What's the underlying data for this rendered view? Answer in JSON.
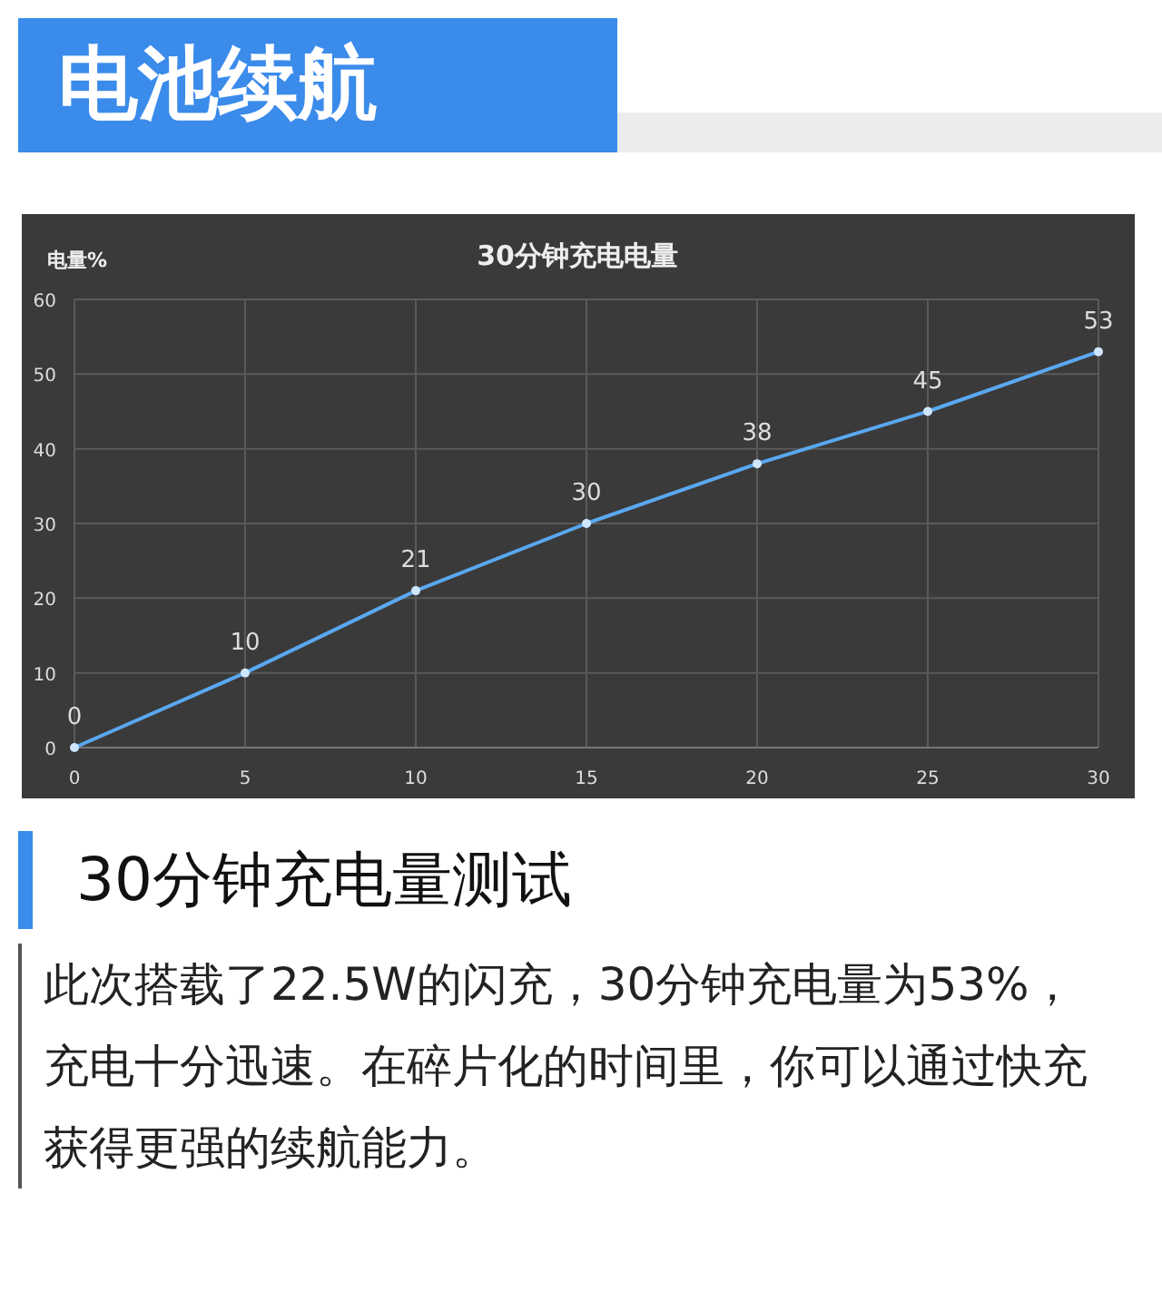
{
  "chart_data": {
    "type": "line",
    "title": "30分钟充电电量",
    "ylabel": "电量%",
    "annotations": [
      "电池续航",
      "30分钟充电量测试",
      "此次搭载了22.5W的闪充，30分钟充电量为53%，充电十分迅速。在碎片化的时间里，你可以通过快充获得更强的续航能力。"
    ],
    "x": [
      0,
      5,
      10,
      15,
      20,
      25,
      30
    ],
    "values": [
      0,
      10,
      21,
      30,
      38,
      45,
      53
    ],
    "color": "#5aa8f0",
    "xlim": [
      0,
      30
    ],
    "ylim": [
      0,
      60
    ],
    "xticks": [
      0,
      5,
      10,
      15,
      20,
      25,
      30
    ],
    "yticks": [
      0,
      10,
      20,
      30,
      40,
      50,
      60
    ],
    "grid": true,
    "data_labels": true,
    "marker": "circle"
  }
}
